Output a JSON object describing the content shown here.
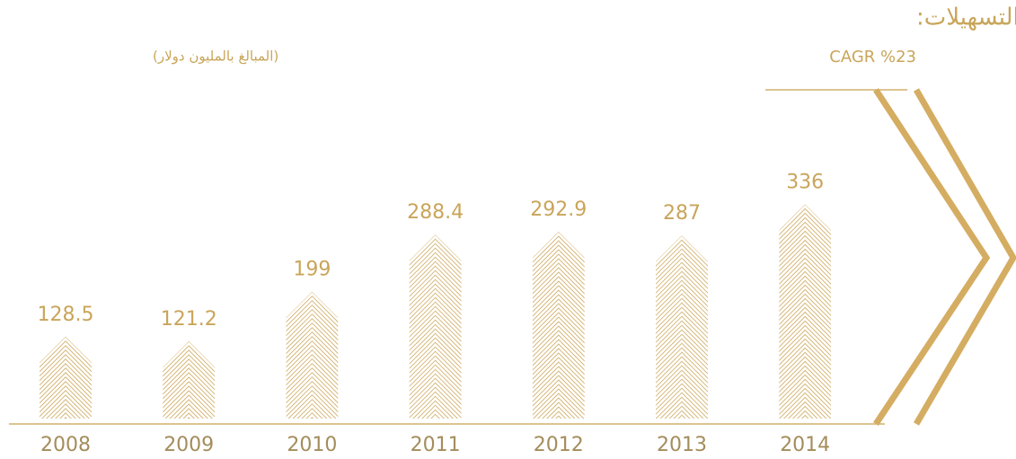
{
  "chart_data": {
    "type": "bar",
    "title": "التسهيلات:",
    "subtitle": "CAGR %23",
    "unit_label": "(المبالغ بالمليون دولار)",
    "categories": [
      "2008",
      "2009",
      "2010",
      "2011",
      "2012",
      "2013",
      "2014"
    ],
    "values": [
      128.5,
      121.2,
      199,
      288.4,
      292.9,
      287,
      336
    ],
    "color": "#d2b06c"
  }
}
